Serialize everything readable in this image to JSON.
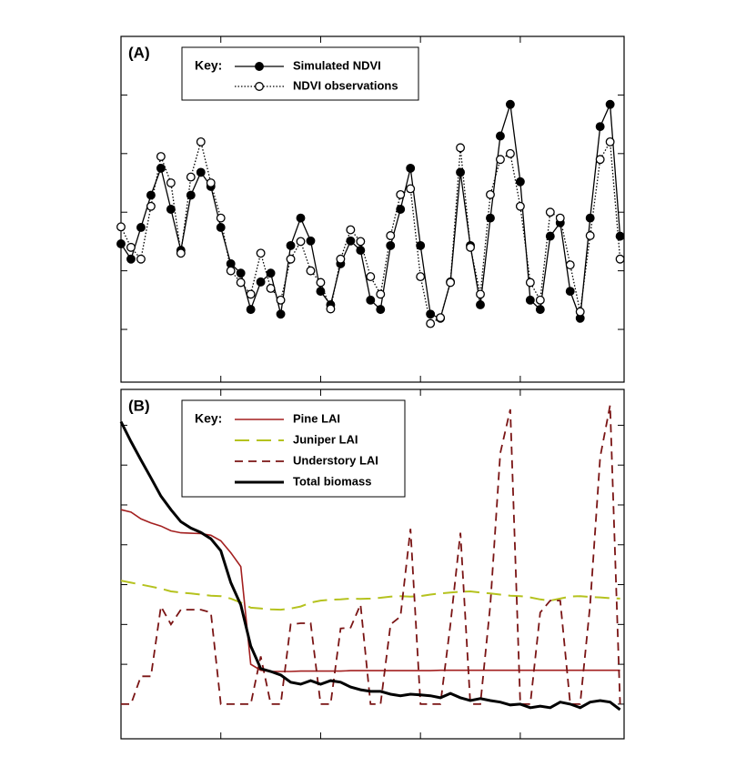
{
  "chart_data": [
    {
      "type": "line",
      "panel_label": "(A)",
      "legend_title": "Key:",
      "x": [
        0,
        0.1,
        0.2,
        0.3,
        0.4,
        0.5,
        0.6,
        0.7,
        0.8,
        0.9,
        1,
        1.1,
        1.2,
        1.3,
        1.4,
        1.5,
        1.6,
        1.7,
        1.8,
        1.9,
        2,
        2.1,
        2.2,
        2.3,
        2.4,
        2.5,
        2.6,
        2.7,
        2.8,
        2.9,
        3,
        3.1,
        3.2,
        3.3,
        3.4,
        3.5,
        3.6,
        3.7,
        3.8,
        3.9,
        4,
        4.1,
        4.2,
        4.3,
        4.4,
        4.5,
        4.6,
        4.7,
        4.8,
        4.9,
        5
      ],
      "xlim": [
        0,
        5.04
      ],
      "xticks": [
        1,
        2,
        3,
        4
      ],
      "ylim": [
        0.1,
        6.0
      ],
      "yticks": [
        1,
        2,
        3,
        4,
        5
      ],
      "series": [
        {
          "name": "Simulated NDVI",
          "color": "#000000",
          "dash": "solid",
          "marker": "filled",
          "values": [
            2.46,
            2.2,
            2.74,
            3.29,
            3.75,
            3.05,
            2.35,
            3.29,
            3.68,
            3.44,
            2.74,
            2.12,
            1.96,
            1.34,
            1.81,
            1.96,
            1.26,
            2.43,
            2.9,
            2.51,
            1.65,
            1.42,
            2.12,
            2.51,
            2.35,
            1.5,
            1.34,
            2.43,
            3.05,
            3.75,
            2.43,
            1.26,
            1.19,
            1.81,
            3.68,
            2.43,
            1.42,
            2.9,
            4.3,
            4.84,
            3.52,
            1.5,
            1.34,
            2.59,
            2.82,
            1.65,
            1.19,
            2.9,
            4.46,
            4.84,
            2.59
          ]
        },
        {
          "name": "NDVI observations",
          "color": "#000000",
          "dash": "dotted",
          "marker": "open",
          "values": [
            2.75,
            2.4,
            2.2,
            3.1,
            3.95,
            3.5,
            2.3,
            3.6,
            4.2,
            3.5,
            2.9,
            2.0,
            1.8,
            1.6,
            2.3,
            1.7,
            1.5,
            2.2,
            2.5,
            2.0,
            1.8,
            1.35,
            2.2,
            2.7,
            2.5,
            1.9,
            1.6,
            2.6,
            3.3,
            3.4,
            1.9,
            1.1,
            1.2,
            1.8,
            4.1,
            2.4,
            1.6,
            3.3,
            3.9,
            4.0,
            3.1,
            1.8,
            1.5,
            3.0,
            2.9,
            2.1,
            1.3,
            2.6,
            3.9,
            4.2,
            2.2
          ]
        }
      ]
    },
    {
      "type": "line",
      "panel_label": "(B)",
      "legend_title": "Key:",
      "x": [
        0,
        0.1,
        0.2,
        0.3,
        0.4,
        0.5,
        0.6,
        0.7,
        0.8,
        0.9,
        1,
        1.1,
        1.2,
        1.3,
        1.4,
        1.5,
        1.6,
        1.7,
        1.8,
        1.9,
        2,
        2.1,
        2.2,
        2.3,
        2.4,
        2.5,
        2.6,
        2.7,
        2.8,
        2.9,
        3,
        3.1,
        3.2,
        3.3,
        3.4,
        3.5,
        3.6,
        3.7,
        3.8,
        3.9,
        4,
        4.1,
        4.2,
        4.3,
        4.4,
        4.5,
        4.6,
        4.7,
        4.8,
        4.9,
        5
      ],
      "xlim": [
        0,
        5.04
      ],
      "xticks": [
        1,
        2,
        3,
        4
      ],
      "ylim": [
        0.13,
        8.9
      ],
      "yticks": [
        1,
        2,
        3,
        4,
        5,
        6,
        7,
        8
      ],
      "series": [
        {
          "name": "Pine LAI",
          "color": "#a31f1f",
          "dash": "solid",
          "width": 1.6,
          "values": [
            5.88,
            5.82,
            5.65,
            5.55,
            5.47,
            5.35,
            5.3,
            5.29,
            5.28,
            5.24,
            5.1,
            4.8,
            4.45,
            2.0,
            1.85,
            1.82,
            1.82,
            1.82,
            1.83,
            1.83,
            1.83,
            1.83,
            1.83,
            1.84,
            1.84,
            1.84,
            1.84,
            1.84,
            1.84,
            1.84,
            1.84,
            1.84,
            1.85,
            1.85,
            1.85,
            1.85,
            1.85,
            1.85,
            1.85,
            1.85,
            1.85,
            1.85,
            1.85,
            1.85,
            1.85,
            1.85,
            1.85,
            1.85,
            1.85,
            1.85,
            1.85
          ]
        },
        {
          "name": "Juniper LAI",
          "color": "#b5c21e",
          "dash": "long",
          "width": 2,
          "values": [
            4.1,
            4.05,
            4.0,
            3.95,
            3.9,
            3.83,
            3.8,
            3.78,
            3.75,
            3.72,
            3.71,
            3.65,
            3.55,
            3.42,
            3.4,
            3.38,
            3.37,
            3.4,
            3.45,
            3.55,
            3.6,
            3.62,
            3.63,
            3.65,
            3.64,
            3.65,
            3.67,
            3.7,
            3.71,
            3.7,
            3.71,
            3.75,
            3.78,
            3.8,
            3.82,
            3.83,
            3.8,
            3.78,
            3.75,
            3.72,
            3.71,
            3.68,
            3.63,
            3.6,
            3.65,
            3.7,
            3.71,
            3.69,
            3.68,
            3.66,
            3.65
          ]
        },
        {
          "name": "Understory LAI",
          "color": "#7a1414",
          "dash": "dashed",
          "width": 1.8,
          "values": [
            1.0,
            1.0,
            1.7,
            1.7,
            3.45,
            3.0,
            3.37,
            3.37,
            3.37,
            3.3,
            1.0,
            1.0,
            1.0,
            1.0,
            2.2,
            1.0,
            1.0,
            3.0,
            3.03,
            3.03,
            1.0,
            1.0,
            2.9,
            2.92,
            3.5,
            1.0,
            1.0,
            3.0,
            3.2,
            5.4,
            1.0,
            1.0,
            1.0,
            3.0,
            5.3,
            1.0,
            1.0,
            3.5,
            7.3,
            8.4,
            1.0,
            1.0,
            3.3,
            3.6,
            3.6,
            1.0,
            1.0,
            3.5,
            7.2,
            8.5,
            1.0
          ]
        },
        {
          "name": "Total biomass",
          "color": "#000000",
          "dash": "solid",
          "width": 3,
          "values": [
            8.09,
            7.59,
            7.13,
            6.68,
            6.22,
            5.88,
            5.58,
            5.42,
            5.31,
            5.15,
            4.85,
            4.05,
            3.49,
            2.46,
            1.89,
            1.82,
            1.73,
            1.55,
            1.5,
            1.59,
            1.5,
            1.59,
            1.55,
            1.43,
            1.36,
            1.32,
            1.32,
            1.25,
            1.21,
            1.25,
            1.23,
            1.21,
            1.16,
            1.27,
            1.16,
            1.09,
            1.14,
            1.09,
            1.05,
            0.98,
            1.0,
            0.91,
            0.95,
            0.91,
            1.05,
            1.0,
            0.91,
            1.05,
            1.09,
            1.05,
            0.86
          ]
        }
      ]
    }
  ]
}
